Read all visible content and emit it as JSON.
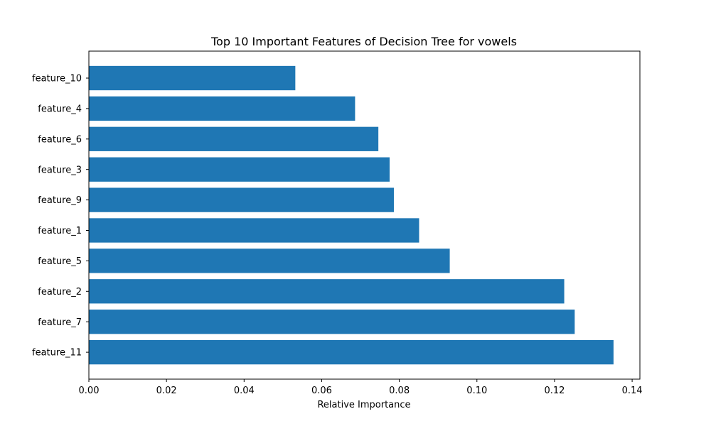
{
  "chart_data": {
    "type": "bar",
    "orientation": "horizontal",
    "title": "Top 10 Important Features of Decision Tree for vowels",
    "xlabel": "Relative Importance",
    "ylabel": "",
    "categories": [
      "feature_10",
      "feature_4",
      "feature_6",
      "feature_3",
      "feature_9",
      "feature_1",
      "feature_5",
      "feature_2",
      "feature_7",
      "feature_11"
    ],
    "values": [
      0.0532,
      0.0686,
      0.0746,
      0.0775,
      0.0786,
      0.0851,
      0.093,
      0.1225,
      0.1252,
      0.1352
    ],
    "xlim": [
      0.0,
      0.142
    ],
    "xticks": [
      0.0,
      0.02,
      0.04,
      0.06,
      0.08,
      0.1,
      0.12,
      0.14
    ],
    "xtick_labels": [
      "0.00",
      "0.02",
      "0.04",
      "0.06",
      "0.08",
      "0.10",
      "0.12",
      "0.14"
    ],
    "bar_color": "#1f77b4",
    "grid": false,
    "legend": false
  }
}
